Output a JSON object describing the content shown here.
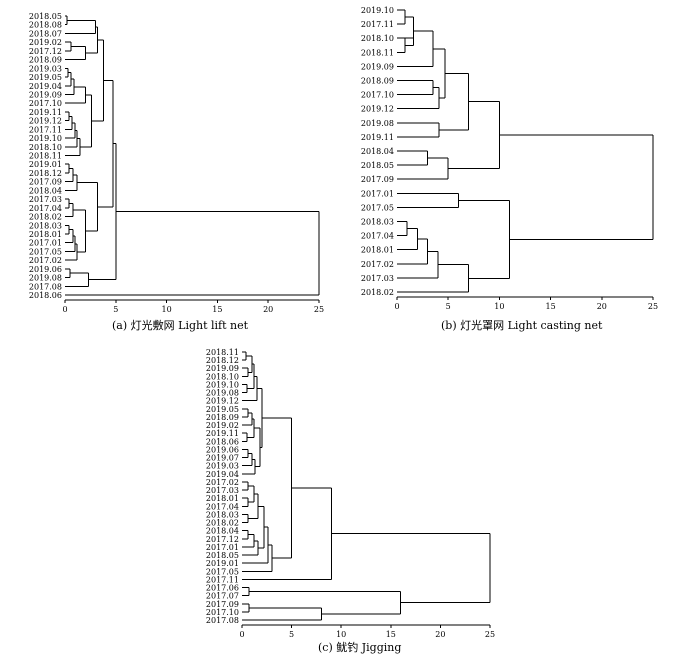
{
  "chart_data": [
    {
      "type": "dendrogram",
      "caption": "(a) 灯光敷网 Light lift net",
      "xlim": [
        0,
        25
      ],
      "xticks": [
        "0",
        "5",
        "10",
        "15",
        "20",
        "25"
      ],
      "leaves": [
        "2018.05",
        "2018.08",
        "2018.07",
        "2019.02",
        "2017.12",
        "2018.09",
        "2019.03",
        "2019.05",
        "2019.04",
        "2019.09",
        "2017.10",
        "2019.11",
        "2019.12",
        "2017.11",
        "2019.10",
        "2018.10",
        "2018.11",
        "2019.01",
        "2018.12",
        "2017.09",
        "2018.04",
        "2017.03",
        "2017.04",
        "2018.02",
        "2018.03",
        "2018.01",
        "2017.01",
        "2017.05",
        "2017.02",
        "2019.06",
        "2019.08",
        "2017.08",
        "2018.06"
      ],
      "tree": [
        [
          [
            [
              [
                [
                  [
                    0,
                    1
                  ],
                  2
                ],
                [
                  [
                    3,
                    4
                  ],
                  5
                ]
              ],
              [
                [
                  6,
                  7,
                  8,
                  9
                ],
                10,
                [
                  11,
                  12,
                  13,
                  14,
                  15,
                  16
                ]
              ]
            ],
            [
              [
                [
                  17,
                  18,
                  19
                ],
                20
              ],
              [
                [
                  21,
                  22,
                  23
                ],
                [
                  24,
                  25,
                  26,
                  27,
                  28
                ]
              ]
            ]
          ],
          [
            29,
            30,
            31
          ]
        ],
        32
      ],
      "heights": {
        "0,1": 0.2,
        "0,1|2": 3.0,
        "3,4": 0.5,
        "3,4|5": 1.8,
        "0|3": 3.2,
        "6": 1.5,
        "lower": 1.8,
        "top": 3.8,
        "left": 4.7,
        "root": 25
      }
    },
    {
      "type": "dendrogram",
      "caption": "(b) 灯光罩网 Light casting net",
      "xlim": [
        0,
        25
      ],
      "xticks": [
        "0",
        "5",
        "10",
        "15",
        "20",
        "25"
      ],
      "leaves": [
        "2019.10",
        "2017.11",
        "2018.10",
        "2018.11",
        "2019.09",
        "2018.09",
        "2017.10",
        "2019.12",
        "2019.08",
        "2019.11",
        "2018.04",
        "2018.05",
        "2017.09",
        "2017.01",
        "2017.05",
        "2018.03",
        "2017.04",
        "2018.01",
        "2017.02",
        "2017.03",
        "2018.02"
      ]
    },
    {
      "type": "dendrogram",
      "caption": "(c) 鱿钓 Jigging",
      "xlim": [
        0,
        25
      ],
      "xticks": [
        "0",
        "5",
        "10",
        "15",
        "20",
        "25"
      ],
      "leaves": [
        "2018.11",
        "2018.12",
        "2019.09",
        "2018.10",
        "2019.10",
        "2019.08",
        "2019.12",
        "2019.05",
        "2018.09",
        "2019.02",
        "2019.11",
        "2018.06",
        "2019.06",
        "2019.07",
        "2019.03",
        "2019.04",
        "2017.02",
        "2017.03",
        "2018.01",
        "2017.04",
        "2018.03",
        "2018.02",
        "2018.04",
        "2017.12",
        "2017.01",
        "2018.05",
        "2019.01",
        "2017.05",
        "2017.11",
        "2017.06",
        "2017.07",
        "2017.09",
        "2017.10",
        "2017.08"
      ]
    }
  ]
}
